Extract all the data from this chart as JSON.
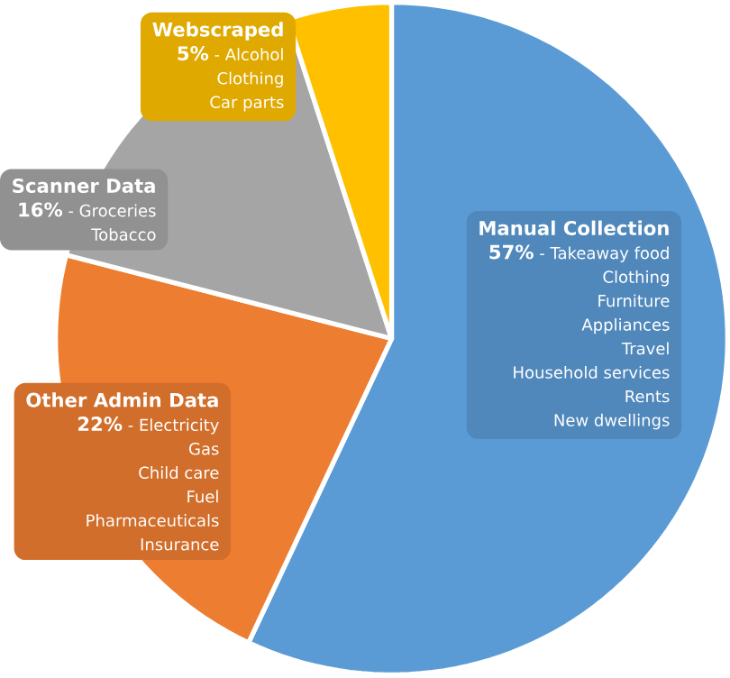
{
  "chart_data": {
    "type": "pie",
    "categories": [
      "Manual Collection",
      "Other Admin Data",
      "Scanner Data",
      "Webscraped"
    ],
    "values": [
      57,
      22,
      16,
      5
    ],
    "value_labels": [
      "57%",
      "22%",
      "16%",
      "5%"
    ],
    "colors": [
      "#5b9bd5",
      "#ed7d31",
      "#a5a5a5",
      "#ffc000"
    ],
    "annotations": [
      {
        "text": "- Takeaway food",
        "x": "Manual Collection"
      },
      {
        "text": "Clothing",
        "x": "Manual Collection"
      },
      {
        "text": "Furniture",
        "x": "Manual Collection"
      },
      {
        "text": "Appliances",
        "x": "Manual Collection"
      },
      {
        "text": "Travel",
        "x": "Manual Collection"
      },
      {
        "text": "Household services",
        "x": "Manual Collection"
      },
      {
        "text": "Rents",
        "x": "Manual Collection"
      },
      {
        "text": "New dwellings",
        "x": "Manual Collection"
      },
      {
        "text": "- Electricity",
        "x": "Other Admin Data"
      },
      {
        "text": "Gas",
        "x": "Other Admin Data"
      },
      {
        "text": "Child care",
        "x": "Other Admin Data"
      },
      {
        "text": "Fuel",
        "x": "Other Admin Data"
      },
      {
        "text": "Pharmaceuticals",
        "x": "Other Admin Data"
      },
      {
        "text": "Insurance",
        "x": "Other Admin Data"
      },
      {
        "text": "- Groceries",
        "x": "Scanner Data"
      },
      {
        "text": "Tobacco",
        "x": "Scanner Data"
      },
      {
        "text": "- Alcohol",
        "x": "Webscraped"
      },
      {
        "text": "Clothing",
        "x": "Webscraped"
      },
      {
        "text": "Car parts",
        "x": "Webscraped"
      }
    ]
  }
}
